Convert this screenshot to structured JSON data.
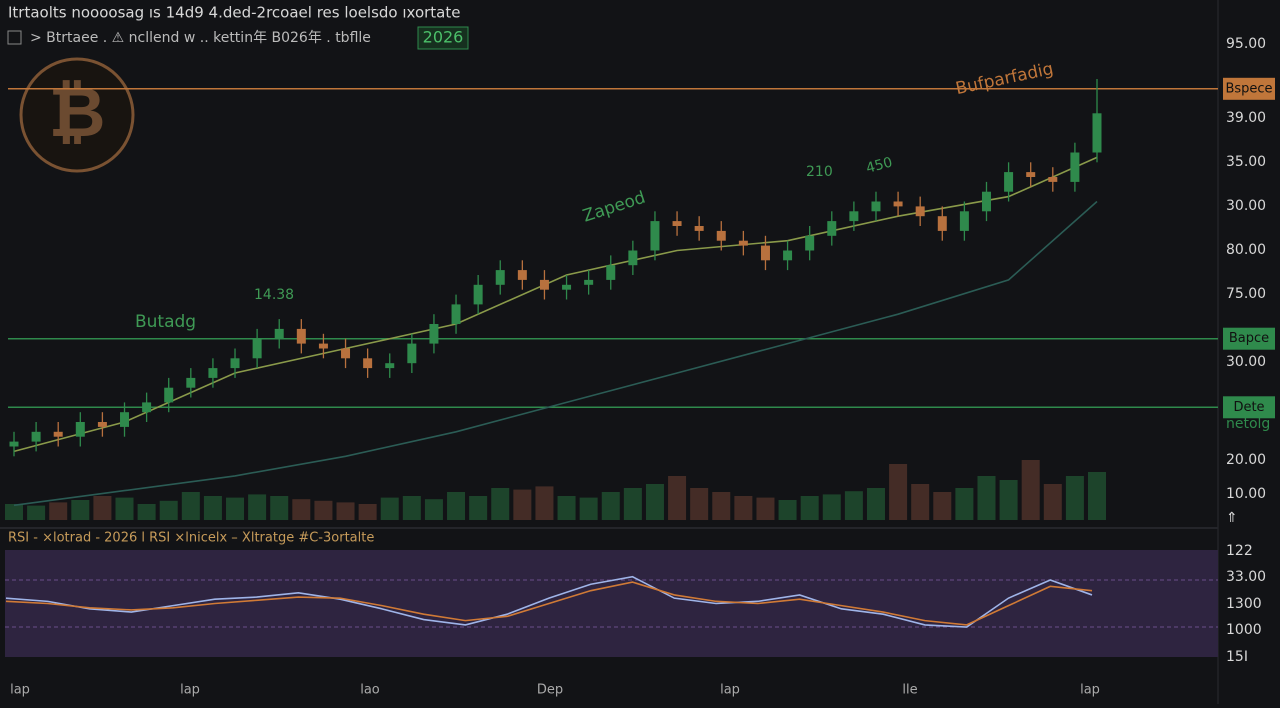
{
  "header": {
    "title": "Itrtaolts  noooosag ıs 14d9 4.ded-2rcoael res loelsdo  ıxortate",
    "subtitle": "> Btrtaee .  ⚠ ncllend  w .. kettin年 B026年 . tbflle",
    "badge": "2026"
  },
  "logo": {
    "symbol": "₿"
  },
  "annotations": [
    "Butadg",
    "14.38",
    "Zapeod",
    "210",
    "450",
    "Bufparfadig"
  ],
  "price_axis_labels": [
    "95.00",
    "39.00",
    "35.00",
    "30.00",
    "80.00",
    "75.00",
    "30.00",
    "netolg",
    "20.00",
    "10.00",
    "⇑"
  ],
  "rsi_axis_labels": [
    "122",
    "33.00",
    "1300",
    "1000",
    "15I"
  ],
  "rsi_legend": "RSI - ×lotrad - 2026 l  RSI ×lnicelx  – Xltratge #C-3ortalte",
  "time_labels": [
    "lap",
    "lap",
    "lao",
    "Dep",
    "lap",
    "lle",
    "lap"
  ],
  "chart_data": {
    "type": "candlestick",
    "ylim": [
      0,
      100
    ],
    "up_color": "#2f8a4c",
    "down_color": "#b8713e",
    "open": [
      15,
      16,
      18,
      17,
      20,
      19,
      22,
      24,
      27,
      29,
      31,
      33,
      37,
      39,
      36,
      35,
      33,
      31,
      32,
      36,
      40,
      44,
      48,
      51,
      49,
      47,
      48,
      49,
      52,
      55,
      61,
      60,
      59,
      57,
      56,
      53,
      55,
      58,
      61,
      63,
      65,
      64,
      62,
      59,
      63,
      67,
      71,
      70,
      69,
      75
    ],
    "high": [
      18,
      20,
      20,
      22,
      22,
      24,
      26,
      29,
      31,
      33,
      35,
      39,
      41,
      41,
      38,
      37,
      35,
      34,
      38,
      42,
      46,
      50,
      53,
      53,
      51,
      50,
      51,
      54,
      57,
      63,
      63,
      62,
      61,
      59,
      58,
      57,
      60,
      63,
      65,
      67,
      67,
      66,
      64,
      65,
      69,
      73,
      73,
      72,
      77,
      90
    ],
    "low": [
      13,
      14,
      15,
      15,
      17,
      17,
      20,
      22,
      25,
      27,
      29,
      31,
      35,
      34,
      33,
      31,
      29,
      29,
      30,
      34,
      38,
      42,
      46,
      47,
      45,
      45,
      46,
      47,
      50,
      53,
      58,
      57,
      55,
      54,
      51,
      51,
      53,
      56,
      59,
      61,
      62,
      60,
      57,
      57,
      61,
      65,
      68,
      67,
      67,
      73
    ],
    "close": [
      16,
      18,
      17,
      20,
      19,
      22,
      24,
      27,
      29,
      31,
      33,
      37,
      39,
      36,
      35,
      33,
      31,
      32,
      36,
      40,
      44,
      48,
      51,
      49,
      47,
      48,
      49,
      52,
      55,
      61,
      60,
      59,
      57,
      56,
      53,
      55,
      58,
      61,
      63,
      65,
      64,
      62,
      59,
      63,
      67,
      71,
      70,
      69,
      75,
      83
    ],
    "volume": [
      20,
      18,
      22,
      25,
      30,
      28,
      20,
      24,
      35,
      30,
      28,
      32,
      30,
      26,
      24,
      22,
      20,
      28,
      30,
      26,
      35,
      30,
      40,
      38,
      42,
      30,
      28,
      35,
      40,
      45,
      55,
      40,
      35,
      30,
      28,
      25,
      30,
      32,
      36,
      40,
      70,
      45,
      35,
      40,
      55,
      50,
      75,
      45,
      55,
      60
    ],
    "volume_ylim": [
      0,
      100
    ],
    "ma_x": [
      0,
      5,
      10,
      15,
      20,
      25,
      30,
      35,
      40,
      45,
      49
    ],
    "ma": [
      {
        "color": "#8a9a4a",
        "values": [
          14,
          20,
          30,
          35,
          40,
          50,
          55,
          57,
          62,
          66,
          74
        ]
      },
      {
        "color": "#2b5c55",
        "values": [
          3,
          6,
          9,
          13,
          18,
          24,
          30,
          36,
          42,
          49,
          65
        ]
      }
    ],
    "levels": [
      {
        "value": 88,
        "label": "Bspece",
        "color": "#c0763a"
      },
      {
        "value": 37,
        "label": "Bapce",
        "color": "#2f8a4c"
      },
      {
        "value": 23,
        "label": "Dete",
        "color": "#2f8a4c"
      }
    ],
    "rsi_ylim": [
      0,
      100
    ],
    "rsi": [
      {
        "color": "#9fb4e8",
        "values": [
          55,
          52,
          45,
          42,
          48,
          54,
          56,
          60,
          54,
          45,
          35,
          30,
          40,
          55,
          68,
          75,
          55,
          50,
          52,
          58,
          45,
          40,
          30,
          28,
          55,
          72,
          58
        ]
      },
      {
        "color": "#d07a36",
        "values": [
          52,
          50,
          46,
          44,
          46,
          50,
          53,
          56,
          55,
          48,
          40,
          34,
          38,
          50,
          62,
          70,
          58,
          52,
          50,
          54,
          48,
          42,
          34,
          30,
          48,
          66,
          62
        ]
      }
    ]
  }
}
